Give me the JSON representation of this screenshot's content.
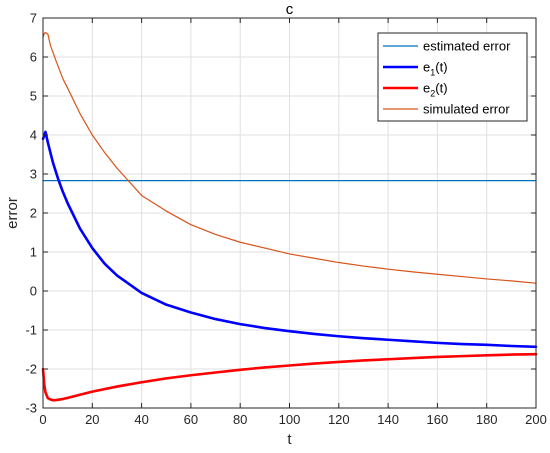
{
  "chart_data": {
    "type": "line",
    "title": "c",
    "xlabel": "t",
    "ylabel": "error",
    "xlim": [
      0,
      200
    ],
    "ylim": [
      -3,
      7
    ],
    "xticks": [
      0,
      20,
      40,
      60,
      80,
      100,
      120,
      140,
      160,
      180,
      200
    ],
    "yticks": [
      -3,
      -2,
      -1,
      0,
      1,
      2,
      3,
      4,
      5,
      6,
      7
    ],
    "grid": true,
    "legend_position": "top-right",
    "series": [
      {
        "name": "estimated error",
        "color": "#0072BD",
        "x": [
          0,
          200
        ],
        "y": [
          2.83,
          2.83
        ]
      },
      {
        "name": "e1(t)",
        "label_main": "e",
        "label_sub": "1",
        "label_tail": "(t)",
        "color": "#0000FF",
        "bold": true,
        "x": [
          0,
          1,
          2,
          4,
          6,
          8,
          10,
          15,
          20,
          25,
          30,
          40,
          50,
          60,
          70,
          80,
          90,
          100,
          110,
          120,
          130,
          140,
          150,
          160,
          170,
          180,
          190,
          200
        ],
        "y": [
          3.9,
          4.08,
          3.8,
          3.3,
          2.9,
          2.55,
          2.25,
          1.6,
          1.1,
          0.7,
          0.4,
          -0.05,
          -0.35,
          -0.55,
          -0.72,
          -0.85,
          -0.95,
          -1.03,
          -1.1,
          -1.16,
          -1.21,
          -1.25,
          -1.29,
          -1.33,
          -1.36,
          -1.38,
          -1.41,
          -1.43
        ]
      },
      {
        "name": "e2(t)",
        "label_main": "e",
        "label_sub": "2",
        "label_tail": "(t)",
        "color": "#FF0000",
        "bold": true,
        "x": [
          0,
          0.5,
          1,
          2,
          3,
          4,
          5,
          6,
          8,
          10,
          15,
          20,
          30,
          40,
          50,
          60,
          70,
          80,
          90,
          100,
          110,
          120,
          130,
          140,
          150,
          160,
          170,
          180,
          190,
          200
        ],
        "y": [
          -2.0,
          -2.4,
          -2.6,
          -2.75,
          -2.78,
          -2.8,
          -2.8,
          -2.79,
          -2.77,
          -2.74,
          -2.66,
          -2.58,
          -2.45,
          -2.34,
          -2.24,
          -2.16,
          -2.09,
          -2.02,
          -1.96,
          -1.91,
          -1.86,
          -1.82,
          -1.78,
          -1.75,
          -1.72,
          -1.69,
          -1.67,
          -1.65,
          -1.63,
          -1.62
        ]
      },
      {
        "name": "simulated error",
        "color": "#D95319",
        "x": [
          0,
          0.5,
          1,
          2,
          3,
          5,
          8,
          10,
          15,
          20,
          25,
          30,
          40,
          50,
          60,
          70,
          80,
          90,
          100,
          110,
          120,
          130,
          140,
          150,
          160,
          170,
          180,
          190,
          200
        ],
        "y": [
          6.5,
          6.6,
          6.63,
          6.58,
          6.3,
          5.95,
          5.45,
          5.2,
          4.55,
          4.0,
          3.55,
          3.15,
          2.45,
          2.05,
          1.7,
          1.45,
          1.25,
          1.1,
          0.95,
          0.84,
          0.73,
          0.64,
          0.56,
          0.49,
          0.43,
          0.37,
          0.31,
          0.26,
          0.2
        ]
      }
    ]
  }
}
